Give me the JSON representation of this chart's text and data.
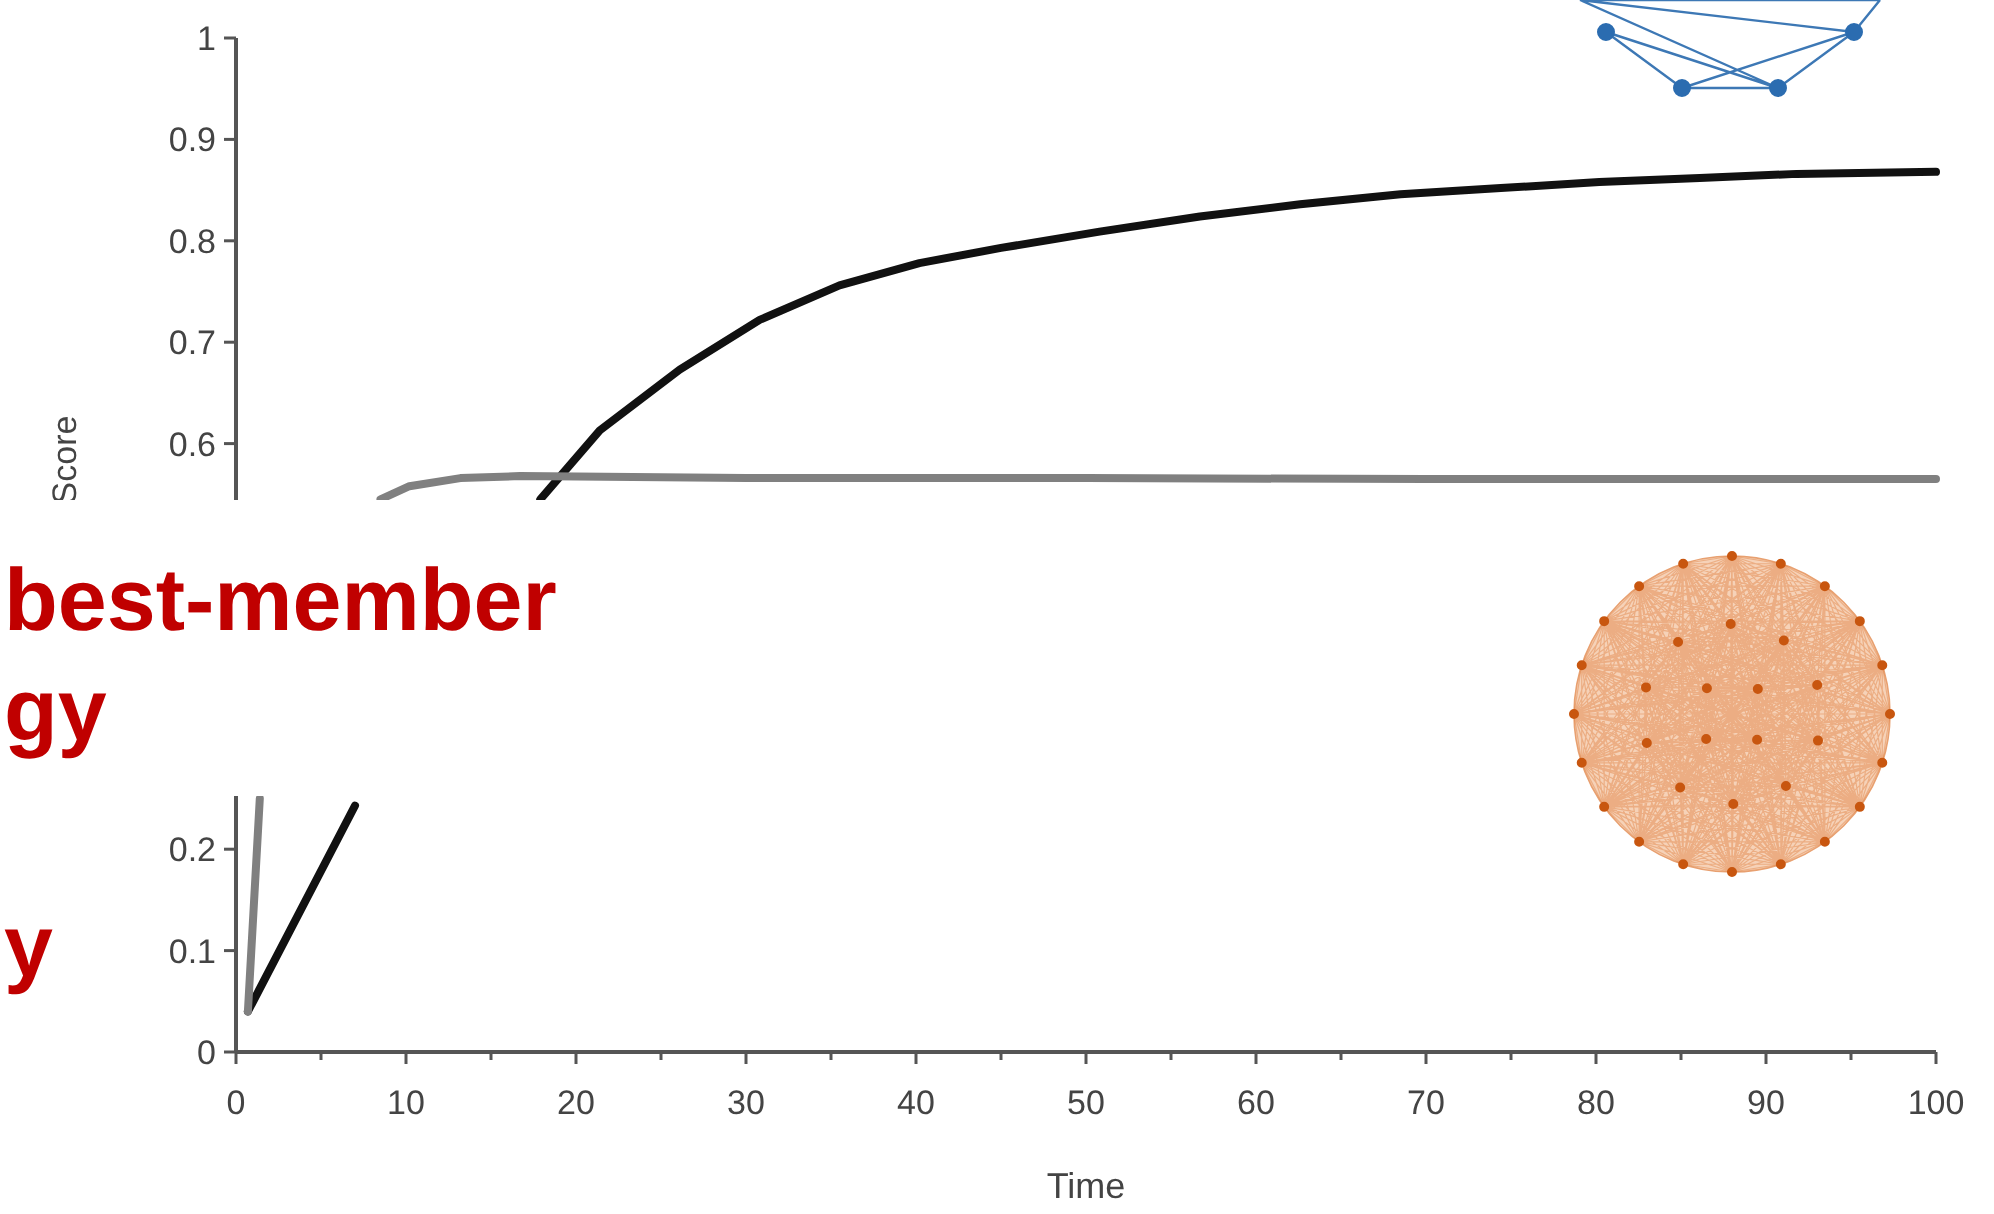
{
  "chart_data": {
    "type": "line",
    "xlabel": "Time",
    "ylabel": "Score",
    "xlim": [
      0,
      100
    ],
    "ylim": [
      0,
      1
    ],
    "xticks": [
      0,
      {
        "value": 5,
        "label": null
      },
      10,
      {
        "value": 15,
        "label": null
      },
      20,
      {
        "value": 25,
        "label": null
      },
      30,
      {
        "value": 35,
        "label": null
      },
      40,
      {
        "value": 45,
        "label": null
      },
      50,
      {
        "value": 55,
        "label": null
      },
      60,
      {
        "value": 65,
        "label": null
      },
      70,
      {
        "value": 75,
        "label": null
      },
      80,
      {
        "value": 85,
        "label": null
      },
      90,
      {
        "value": 95,
        "label": null
      },
      100
    ],
    "yticks": [
      0,
      0.1,
      0.2,
      0.6,
      0.7,
      0.8,
      0.9,
      1
    ],
    "marker": "none",
    "line_style": "solid",
    "annotations": [
      "best-member",
      "gy",
      "y"
    ],
    "series": [
      {
        "color": "#111111",
        "x": [
          0.7,
          7,
          12,
          17.9,
          21.4,
          26.1,
          30.8,
          35.5,
          40.2,
          45,
          50.8,
          56.7,
          62.6,
          68.5,
          74.4,
          80.2,
          86.1,
          91.8,
          100
        ],
        "values": [
          0.04,
          0.243,
          null,
          0.545,
          0.613,
          0.673,
          0.722,
          0.756,
          0.778,
          0.793,
          0.809,
          0.824,
          0.836,
          0.846,
          0.852,
          0.858,
          0.862,
          0.866,
          0.868
        ]
      },
      {
        "color": "#808080",
        "x": [
          0.7,
          1.4,
          5,
          8.5,
          10.2,
          13.2,
          16.7,
          30,
          50,
          70,
          100
        ],
        "values": [
          0.04,
          0.25,
          null,
          0.545,
          0.558,
          0.566,
          0.568,
          0.566,
          0.566,
          0.565,
          0.565
        ]
      }
    ]
  }
}
